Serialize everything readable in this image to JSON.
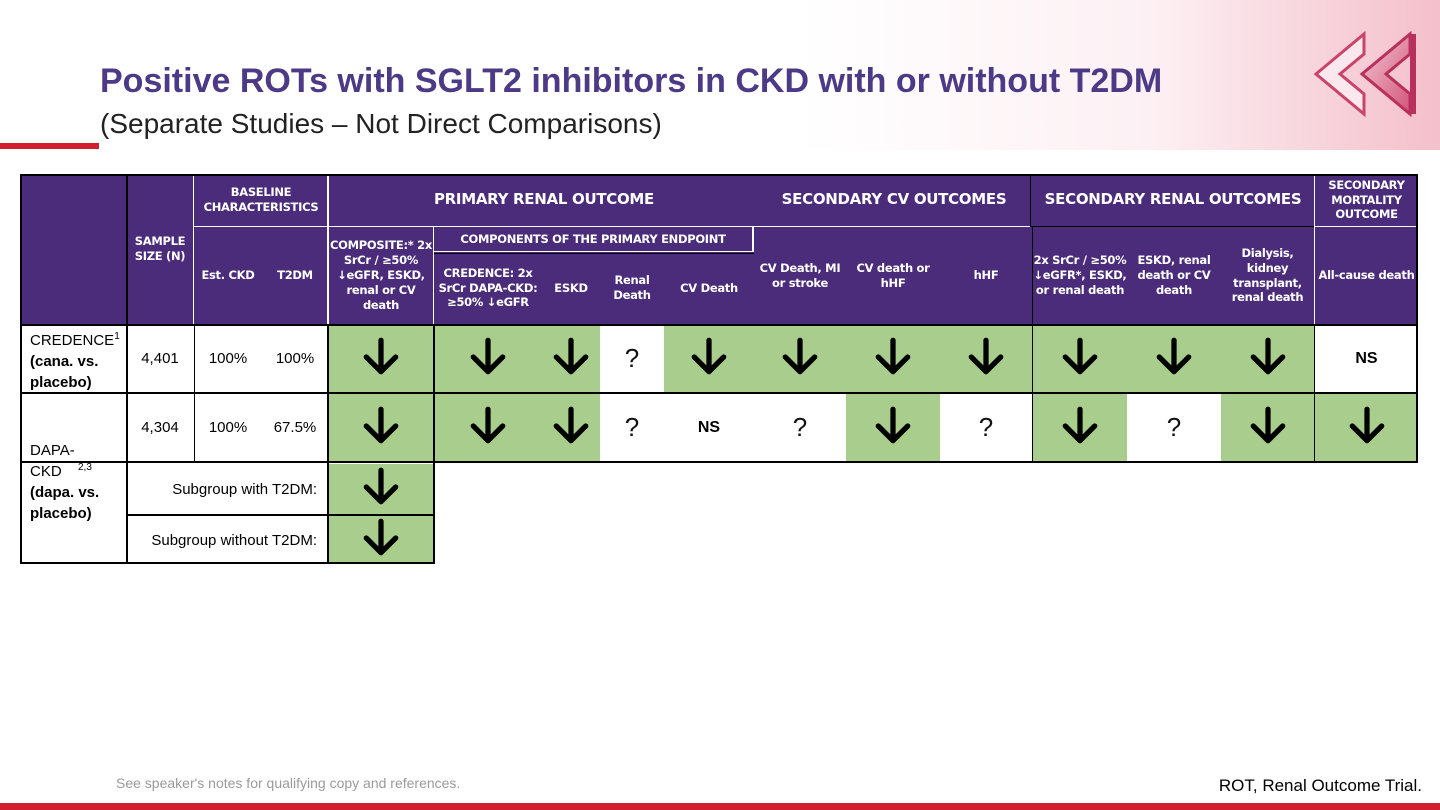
{
  "header": {
    "title": "Positive ROTs with SGLT2 inhibitors in CKD with or without T2DM",
    "subtitle": "(Separate Studies – Not Direct Comparisons)"
  },
  "table": {
    "headers": {
      "sample_size": "SAMPLE SIZE (N)",
      "baseline": "BASELINE CHARACTERISTICS",
      "est_ckd": "Est. CKD",
      "t2dm": "T2DM",
      "primary_renal": "PRIMARY RENAL OUTCOME",
      "composite": "COMPOSITE:* 2x SrCr / ≥50% ↓eGFR, ESKD, renal or CV death",
      "components": "COMPONENTS OF THE PRIMARY ENDPOINT",
      "comp_srcr": "CREDENCE: 2x SrCr DAPA-CKD: ≥50% ↓eGFR",
      "comp_eskd": "ESKD",
      "comp_renal_death": "Renal Death",
      "comp_cv_death": "CV Death",
      "secondary_cv": "SECONDARY CV OUTCOMES",
      "cv_mi_stroke": "CV Death, MI or stroke",
      "cv_hhf": "CV death or hHF",
      "hhf": "hHF",
      "secondary_renal": "SECONDARY RENAL OUTCOMES",
      "sr_composite": "2x SrCr / ≥50% ↓eGFR*, ESKD, or renal death",
      "sr_eskd": "ESKD, renal death or CV death",
      "sr_dialysis": "Dialysis, kidney transplant, renal death",
      "secondary_mortality": "SECONDARY MORTALITY OUTCOME",
      "all_cause": "All-cause death"
    },
    "rows": [
      {
        "study": "CREDENCE",
        "sup": "1",
        "comparison": "(cana. vs. placebo)",
        "n": "4,401",
        "ckd": "100%",
        "t2dm": "100%",
        "results": [
          "down",
          "down",
          "down",
          "?",
          "down",
          "down",
          "down",
          "down",
          "down",
          "down",
          "down",
          "NS"
        ]
      },
      {
        "study": "DAPA-CKD",
        "sup": "2,3",
        "comparison": "(dapa. vs. placebo)",
        "n": "4,304",
        "ckd": "100%",
        "t2dm": "67.5%",
        "results": [
          "down",
          "down",
          "down",
          "?",
          "NS",
          "?",
          "down",
          "?",
          "down",
          "?",
          "down",
          "down"
        ]
      }
    ],
    "subgroups": [
      {
        "label": "Subgroup with T2DM:",
        "result": "down"
      },
      {
        "label": "Subgroup without T2DM:",
        "result": "down"
      }
    ]
  },
  "footer": {
    "note": "See speaker's notes for qualifying copy and references.",
    "abbreviation": "ROT, Renal Outcome Trial."
  },
  "colors": {
    "header_purple": "#4b2c7a",
    "title_purple": "#4d3a86",
    "result_green": "#a9cd8d",
    "brand_red": "#d11f2f"
  }
}
